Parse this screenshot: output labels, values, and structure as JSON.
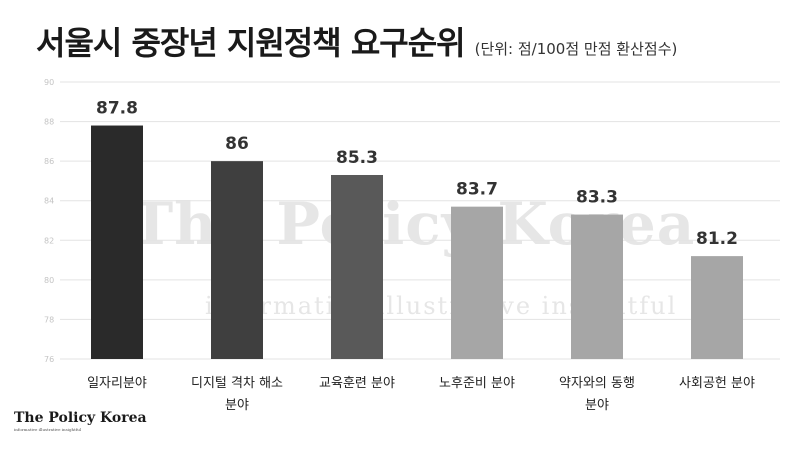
{
  "header": {
    "title": "서울시 중장년 지원정책 요구순위",
    "subtitle": "(단위: 점/100점 만점 환산점수)"
  },
  "watermark": {
    "main": "The Policy Korea",
    "sub": "informative illustrative insightful"
  },
  "logo": {
    "main": "The Policy Korea",
    "sub": "informative illustrative insightful"
  },
  "chart_data": {
    "type": "bar",
    "categories": [
      [
        "일자리분야"
      ],
      [
        "디지털 격차 해소",
        "분야"
      ],
      [
        "교육훈련 분야"
      ],
      [
        "노후준비 분야"
      ],
      [
        "약자와의 동행",
        "분야"
      ],
      [
        "사회공헌 분야"
      ]
    ],
    "values": [
      87.8,
      86,
      85.3,
      83.7,
      83.3,
      81.2
    ],
    "value_labels": [
      "87.8",
      "86",
      "85.3",
      "83.7",
      "83.3",
      "81.2"
    ],
    "bar_colors": [
      "#2a2a2a",
      "#3f3f3f",
      "#595959",
      "#a6a6a6",
      "#a6a6a6",
      "#a6a6a6"
    ],
    "ylim": [
      76,
      90
    ],
    "yticks": [
      76,
      78,
      80,
      82,
      84,
      86,
      88,
      90
    ],
    "grid": true,
    "title": "",
    "xlabel": "",
    "ylabel": ""
  }
}
